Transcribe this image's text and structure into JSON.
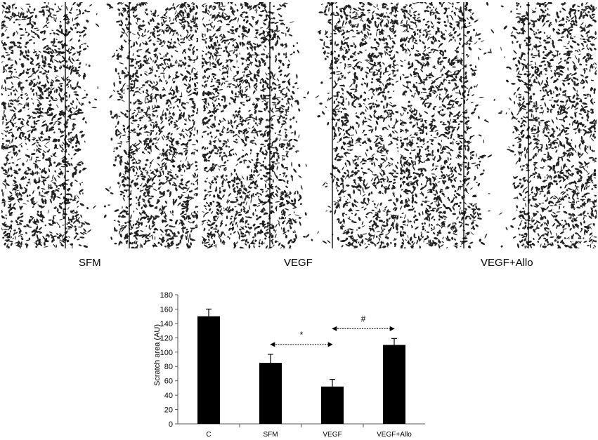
{
  "panels": [
    {
      "label": "SFM"
    },
    {
      "label": "VEGF"
    },
    {
      "label": "VEGF+Allo"
    }
  ],
  "chart_data": {
    "type": "bar",
    "categories": [
      "C",
      "SFM",
      "VEGF",
      "VEGF+Allo"
    ],
    "values": [
      150,
      85,
      52,
      110
    ],
    "errors": [
      10,
      12,
      10,
      9
    ],
    "ylabel": "Scratch area (AU)",
    "ylim": [
      0,
      180
    ],
    "yticks": [
      0,
      20,
      40,
      60,
      80,
      100,
      120,
      140,
      160,
      180
    ],
    "grid": false,
    "bar_color": "#000000",
    "annotations": [
      {
        "symbol": "*",
        "from": "SFM",
        "to": "VEGF"
      },
      {
        "symbol": "#",
        "from": "VEGF",
        "to": "VEGF+Allo"
      }
    ]
  }
}
